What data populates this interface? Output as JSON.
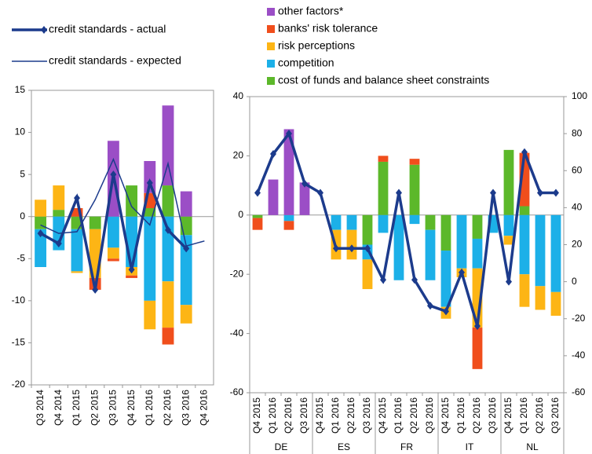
{
  "chart_data": [
    {
      "type": "bar",
      "stacked": true,
      "categories": [
        "Q3 2014",
        "Q4 2014",
        "Q1 2015",
        "Q2 2015",
        "Q3 2015",
        "Q4 2015",
        "Q1 2016",
        "Q2 2016",
        "Q3 2016",
        "Q4 2016"
      ],
      "ylim": [
        -20,
        15
      ],
      "yticks": [
        -20,
        -15,
        -10,
        -5,
        0,
        5,
        10,
        15
      ],
      "legend": "top-left",
      "series": [
        {
          "color": "#5cb82a",
          "values": [
            -1.5,
            0.8,
            -1.5,
            -1.5,
            0,
            3.7,
            1,
            3.7,
            -2.2,
            0
          ]
        },
        {
          "color": "#1cb0e8",
          "values": [
            -4.5,
            -4,
            -5,
            0,
            -3.7,
            -6,
            -10,
            -7.7,
            -8.3,
            0
          ]
        },
        {
          "color": "#fdb515",
          "values": [
            2,
            2.9,
            -0.2,
            -5.8,
            -1.3,
            -1,
            -3.4,
            -5.5,
            -2.2,
            0
          ]
        },
        {
          "color": "#f04e1c",
          "values": [
            0,
            0,
            1,
            -1.4,
            -0.3,
            -0.3,
            1.8,
            -2,
            0,
            0
          ]
        },
        {
          "color": "#9b4ec6",
          "values": [
            0,
            0,
            0,
            0,
            9,
            0,
            3.8,
            9.5,
            3,
            0
          ]
        }
      ],
      "lines": [
        {
          "name": "credit standards - actual",
          "color": "#1c3b8c",
          "marker": "diamond",
          "values": [
            -2,
            -3.2,
            2.2,
            -8.7,
            5,
            -6.3,
            4,
            -1.6,
            -3.8,
            null
          ]
        },
        {
          "name": "credit standards - expected",
          "color": "#1c3b8c",
          "values": [
            -1,
            -2,
            -1.8,
            2,
            6.8,
            1.2,
            -1,
            6.3,
            -3.5,
            -2.9
          ]
        }
      ]
    },
    {
      "type": "bar",
      "stacked": true,
      "categories": [
        "Q4 2015",
        "Q1 2016",
        "Q2 2016",
        "Q3 2016",
        "Q4 2015",
        "Q1 2016",
        "Q2 2016",
        "Q3 2016",
        "Q4 2015",
        "Q1 2016",
        "Q2 2016",
        "Q3 2016",
        "Q4 2015",
        "Q1 2016",
        "Q2 2016",
        "Q3 2016",
        "Q4 2015",
        "Q1 2016",
        "Q2 2016",
        "Q3 2016"
      ],
      "groups": [
        "DE",
        "ES",
        "FR",
        "IT",
        "NL"
      ],
      "ylim": [
        -60,
        40
      ],
      "yticks": [
        -60,
        -40,
        -20,
        0,
        20,
        40
      ],
      "y2lim": [
        -60,
        100
      ],
      "y2ticks": [
        -60,
        -40,
        -20,
        0,
        20,
        40,
        60,
        80,
        100
      ],
      "legend": "top",
      "series": [
        {
          "name": "cost of funds and balance sheet constraints",
          "color": "#5cb82a",
          "values": [
            -1,
            0,
            0,
            0,
            0,
            0,
            0,
            -10,
            18,
            0,
            17,
            -5,
            -12,
            0,
            -8,
            0,
            22,
            3,
            0,
            0
          ]
        },
        {
          "name": "competition",
          "color": "#1cb0e8",
          "values": [
            0,
            0,
            -2,
            0,
            0,
            -5,
            -5,
            -5,
            -6,
            -22,
            -3,
            -17,
            -19,
            -18,
            -10,
            -6,
            -7,
            -20,
            -24,
            -26
          ]
        },
        {
          "name": "risk perceptions",
          "color": "#fdb515",
          "values": [
            0,
            0,
            0,
            0,
            0,
            -10,
            -10,
            -10,
            0,
            0,
            0,
            0,
            -4,
            -3,
            -20,
            0,
            -3,
            -11,
            -8,
            -8
          ]
        },
        {
          "name": "banks' risk tolerance",
          "color": "#f04e1c",
          "values": [
            -4,
            0,
            -3,
            0,
            0,
            0,
            0,
            0,
            2,
            0,
            2,
            0,
            0,
            0,
            -14,
            0,
            0,
            18,
            0,
            0
          ]
        },
        {
          "name": "other factors*",
          "color": "#9b4ec6",
          "values": [
            0,
            12,
            29,
            11,
            0,
            0,
            0,
            0,
            0,
            0,
            0,
            0,
            0,
            0,
            0,
            0,
            0,
            0,
            0,
            0
          ]
        }
      ],
      "lines": [
        {
          "color": "#1c3b8c",
          "marker": "diamond",
          "axis": "y2",
          "values": [
            48,
            69,
            80,
            53,
            48,
            18,
            18,
            18,
            1,
            48,
            1,
            -13,
            -16,
            5,
            -24,
            48,
            0,
            70,
            48,
            48
          ]
        }
      ]
    }
  ]
}
